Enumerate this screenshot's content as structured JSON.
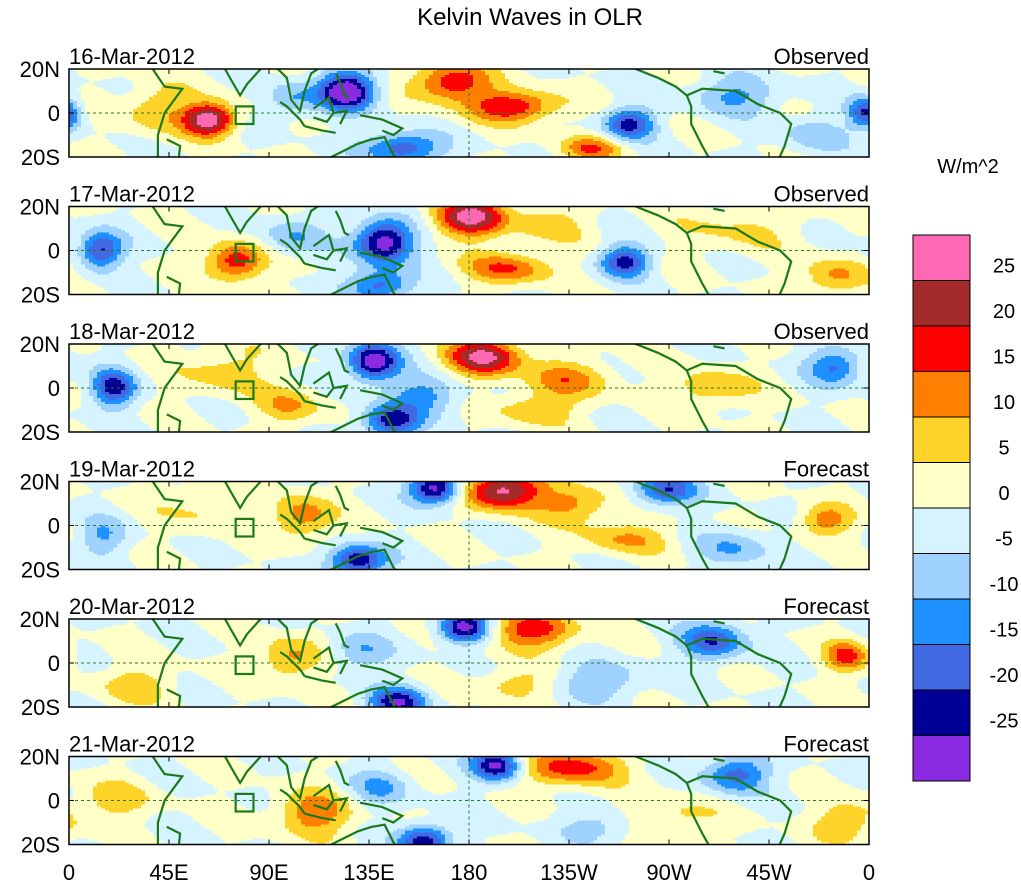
{
  "chart_data": {
    "type": "heatmap",
    "title": "Kelvin Waves in OLR",
    "x_ticks": [
      "0",
      "45E",
      "90E",
      "135E",
      "180",
      "135W",
      "90W",
      "45W",
      "0"
    ],
    "x_tick_lon": [
      0,
      45,
      90,
      135,
      180,
      225,
      270,
      315,
      360
    ],
    "y_ticks": [
      "20N",
      "0",
      "20S"
    ],
    "y_tick_lat": [
      20,
      0,
      -20
    ],
    "lat_range": [
      -20,
      20
    ],
    "lon_range": [
      0,
      360
    ],
    "colorbar": {
      "units": "W/m^2",
      "labels": [
        "25",
        "20",
        "15",
        "10",
        "5",
        "0",
        "-5",
        "-10",
        "-15",
        "-20",
        "-25"
      ],
      "colors_top_to_bottom": [
        "#ff69b4",
        "#a52a2a",
        "#ff0000",
        "#ff7f00",
        "#ffd42a",
        "#ffffc8",
        "#d6f4ff",
        "#a0d2ff",
        "#1e90ff",
        "#4169e1",
        "#000096",
        "#8a2be2"
      ],
      "bin_edges": [
        -30,
        -25,
        -20,
        -15,
        -10,
        -5,
        0,
        5,
        10,
        15,
        20,
        25,
        30
      ]
    },
    "panels": [
      {
        "date": "16-Mar-2012",
        "status": "Observed",
        "blobs": [
          {
            "lon": 125,
            "lat": 10,
            "a": -32,
            "sx": 9,
            "sy": 6
          },
          {
            "lon": 150,
            "lat": -16,
            "a": -20,
            "sx": 12,
            "sy": 5
          },
          {
            "lon": 63,
            "lat": -3,
            "a": 30,
            "sx": 8,
            "sy": 5
          },
          {
            "lon": 172,
            "lat": 14,
            "a": 20,
            "sx": 12,
            "sy": 6
          },
          {
            "lon": 200,
            "lat": 3,
            "a": 20,
            "sx": 14,
            "sy": 5
          },
          {
            "lon": 252,
            "lat": -5,
            "a": -22,
            "sx": 8,
            "sy": 5
          },
          {
            "lon": 235,
            "lat": -16,
            "a": 14,
            "sx": 10,
            "sy": 4
          },
          {
            "lon": 300,
            "lat": 8,
            "a": -11,
            "sx": 14,
            "sy": 6
          },
          {
            "lon": 335,
            "lat": -10,
            "a": -9,
            "sx": 10,
            "sy": 6
          },
          {
            "lon": 40,
            "lat": 2,
            "a": 10,
            "sx": 10,
            "sy": 8
          },
          {
            "lon": 100,
            "lat": 6,
            "a": -10,
            "sx": 8,
            "sy": 6
          },
          {
            "lon": 358,
            "lat": 0,
            "a": -20,
            "sx": 5,
            "sy": 5
          }
        ]
      },
      {
        "date": "17-Mar-2012",
        "status": "Observed",
        "blobs": [
          {
            "lon": 142,
            "lat": 4,
            "a": -30,
            "sx": 9,
            "sy": 7
          },
          {
            "lon": 180,
            "lat": 15,
            "a": 27,
            "sx": 11,
            "sy": 6
          },
          {
            "lon": 75,
            "lat": -5,
            "a": 20,
            "sx": 9,
            "sy": 6
          },
          {
            "lon": 14,
            "lat": 0,
            "a": -22,
            "sx": 7,
            "sy": 6
          },
          {
            "lon": 250,
            "lat": -5,
            "a": -22,
            "sx": 8,
            "sy": 5
          },
          {
            "lon": 198,
            "lat": -8,
            "a": 15,
            "sx": 14,
            "sy": 5
          },
          {
            "lon": 215,
            "lat": 12,
            "a": 8,
            "sx": 12,
            "sy": 6
          },
          {
            "lon": 345,
            "lat": -12,
            "a": 12,
            "sx": 10,
            "sy": 6
          },
          {
            "lon": 140,
            "lat": -16,
            "a": -18,
            "sx": 10,
            "sy": 5
          },
          {
            "lon": 100,
            "lat": 6,
            "a": -10,
            "sx": 10,
            "sy": 6
          },
          {
            "lon": 300,
            "lat": 10,
            "a": 6,
            "sx": 18,
            "sy": 8
          }
        ]
      },
      {
        "date": "18-Mar-2012",
        "status": "Observed",
        "blobs": [
          {
            "lon": 187,
            "lat": 14,
            "a": 27,
            "sx": 11,
            "sy": 6
          },
          {
            "lon": 137,
            "lat": 12,
            "a": -30,
            "sx": 8,
            "sy": 6
          },
          {
            "lon": 145,
            "lat": -15,
            "a": -24,
            "sx": 9,
            "sy": 5
          },
          {
            "lon": 20,
            "lat": 0,
            "a": -22,
            "sx": 7,
            "sy": 6
          },
          {
            "lon": 225,
            "lat": 4,
            "a": 12,
            "sx": 14,
            "sy": 6
          },
          {
            "lon": 210,
            "lat": -10,
            "a": 10,
            "sx": 12,
            "sy": 5
          },
          {
            "lon": 345,
            "lat": 10,
            "a": -16,
            "sx": 9,
            "sy": 6
          },
          {
            "lon": 290,
            "lat": 0,
            "a": 10,
            "sx": 12,
            "sy": 6
          },
          {
            "lon": 70,
            "lat": 8,
            "a": 8,
            "sx": 14,
            "sy": 8
          },
          {
            "lon": 160,
            "lat": -3,
            "a": -12,
            "sx": 12,
            "sy": 6
          },
          {
            "lon": 100,
            "lat": -8,
            "a": 10,
            "sx": 10,
            "sy": 6
          }
        ]
      },
      {
        "date": "19-Mar-2012",
        "status": "Forecast",
        "blobs": [
          {
            "lon": 165,
            "lat": 17,
            "a": -30,
            "sx": 8,
            "sy": 5
          },
          {
            "lon": 195,
            "lat": 16,
            "a": 28,
            "sx": 12,
            "sy": 6
          },
          {
            "lon": 130,
            "lat": -16,
            "a": -26,
            "sx": 9,
            "sy": 5
          },
          {
            "lon": 105,
            "lat": 4,
            "a": 14,
            "sx": 9,
            "sy": 7
          },
          {
            "lon": 250,
            "lat": -6,
            "a": 10,
            "sx": 14,
            "sy": 5
          },
          {
            "lon": 228,
            "lat": 10,
            "a": 12,
            "sx": 12,
            "sy": 6
          },
          {
            "lon": 268,
            "lat": 16,
            "a": -20,
            "sx": 10,
            "sy": 5
          },
          {
            "lon": 340,
            "lat": 2,
            "a": 14,
            "sx": 8,
            "sy": 5
          },
          {
            "lon": 15,
            "lat": -5,
            "a": -10,
            "sx": 8,
            "sy": 6
          },
          {
            "lon": 300,
            "lat": -10,
            "a": -10,
            "sx": 12,
            "sy": 6
          },
          {
            "lon": 60,
            "lat": 8,
            "a": 6,
            "sx": 14,
            "sy": 8
          }
        ]
      },
      {
        "date": "20-Mar-2012",
        "status": "Forecast",
        "blobs": [
          {
            "lon": 178,
            "lat": 16,
            "a": -28,
            "sx": 8,
            "sy": 5
          },
          {
            "lon": 208,
            "lat": 15,
            "a": 18,
            "sx": 14,
            "sy": 6
          },
          {
            "lon": 148,
            "lat": -18,
            "a": -24,
            "sx": 9,
            "sy": 5
          },
          {
            "lon": 100,
            "lat": 2,
            "a": 12,
            "sx": 10,
            "sy": 7
          },
          {
            "lon": 290,
            "lat": 10,
            "a": -20,
            "sx": 10,
            "sy": 6
          },
          {
            "lon": 350,
            "lat": 3,
            "a": 16,
            "sx": 7,
            "sy": 5
          },
          {
            "lon": 240,
            "lat": -8,
            "a": -10,
            "sx": 14,
            "sy": 6
          },
          {
            "lon": 200,
            "lat": -10,
            "a": 8,
            "sx": 12,
            "sy": 5
          },
          {
            "lon": 30,
            "lat": -10,
            "a": 8,
            "sx": 12,
            "sy": 6
          },
          {
            "lon": 130,
            "lat": 5,
            "a": -10,
            "sx": 10,
            "sy": 6
          }
        ]
      },
      {
        "date": "21-Mar-2012",
        "status": "Forecast",
        "blobs": [
          {
            "lon": 193,
            "lat": 16,
            "a": -28,
            "sx": 8,
            "sy": 5
          },
          {
            "lon": 225,
            "lat": 15,
            "a": 18,
            "sx": 16,
            "sy": 6
          },
          {
            "lon": 160,
            "lat": -18,
            "a": -24,
            "sx": 8,
            "sy": 5
          },
          {
            "lon": 110,
            "lat": -6,
            "a": 14,
            "sx": 12,
            "sy": 7
          },
          {
            "lon": 300,
            "lat": 12,
            "a": -18,
            "sx": 10,
            "sy": 6
          },
          {
            "lon": 270,
            "lat": -8,
            "a": 8,
            "sx": 14,
            "sy": 6
          },
          {
            "lon": 20,
            "lat": 0,
            "a": 8,
            "sx": 12,
            "sy": 6
          },
          {
            "lon": 140,
            "lat": 6,
            "a": -10,
            "sx": 10,
            "sy": 6
          },
          {
            "lon": 350,
            "lat": -10,
            "a": 10,
            "sx": 10,
            "sy": 6
          },
          {
            "lon": 240,
            "lat": -12,
            "a": -8,
            "sx": 14,
            "sy": 5
          }
        ]
      }
    ]
  }
}
